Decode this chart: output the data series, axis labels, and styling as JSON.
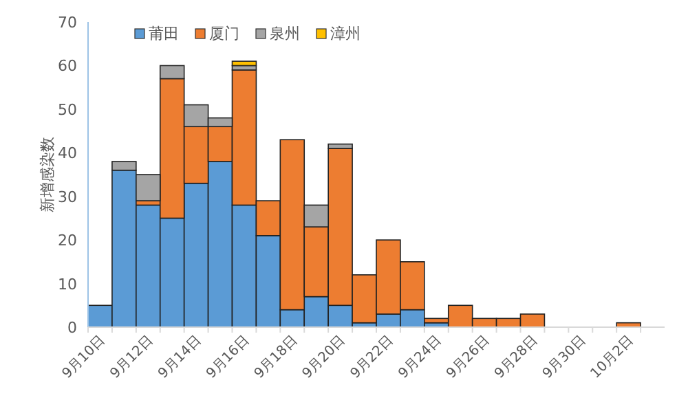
{
  "chart_data": {
    "type": "bar",
    "stacked": true,
    "ylabel": "新增感染数",
    "categories": [
      "9月10日",
      null,
      "9月12日",
      null,
      "9月14日",
      null,
      "9月16日",
      null,
      "9月18日",
      null,
      "9月20日",
      null,
      "9月22日",
      null,
      "9月24日",
      null,
      "9月26日",
      null,
      "9月28日",
      null,
      "9月30日",
      null,
      "10月2日",
      null
    ],
    "series": [
      {
        "name": "莆田",
        "color": "#5b9bd5",
        "values": [
          5,
          36,
          28,
          25,
          33,
          38,
          28,
          21,
          4,
          7,
          5,
          1,
          3,
          4,
          1,
          0,
          0,
          0,
          0,
          0,
          0,
          0,
          0,
          0
        ]
      },
      {
        "name": "厦门",
        "color": "#ed7d31",
        "values": [
          0,
          0,
          1,
          32,
          13,
          8,
          31,
          8,
          39,
          16,
          36,
          11,
          17,
          11,
          1,
          5,
          2,
          2,
          3,
          0,
          0,
          0,
          1,
          0
        ]
      },
      {
        "name": "泉州",
        "color": "#a5a5a5",
        "values": [
          0,
          2,
          6,
          3,
          5,
          2,
          1,
          0,
          0,
          5,
          1,
          0,
          0,
          0,
          0,
          0,
          0,
          0,
          0,
          0,
          0,
          0,
          0,
          0
        ]
      },
      {
        "name": "漳州",
        "color": "#ffc000",
        "values": [
          0,
          0,
          0,
          0,
          0,
          0,
          1,
          0,
          0,
          0,
          0,
          0,
          0,
          0,
          0,
          0,
          0,
          0,
          0,
          0,
          0,
          0,
          0,
          0
        ]
      }
    ],
    "ylim": [
      0,
      70
    ],
    "yticks": [
      0,
      10,
      20,
      30,
      40,
      50,
      60,
      70
    ],
    "legend": "top",
    "grid": false
  }
}
